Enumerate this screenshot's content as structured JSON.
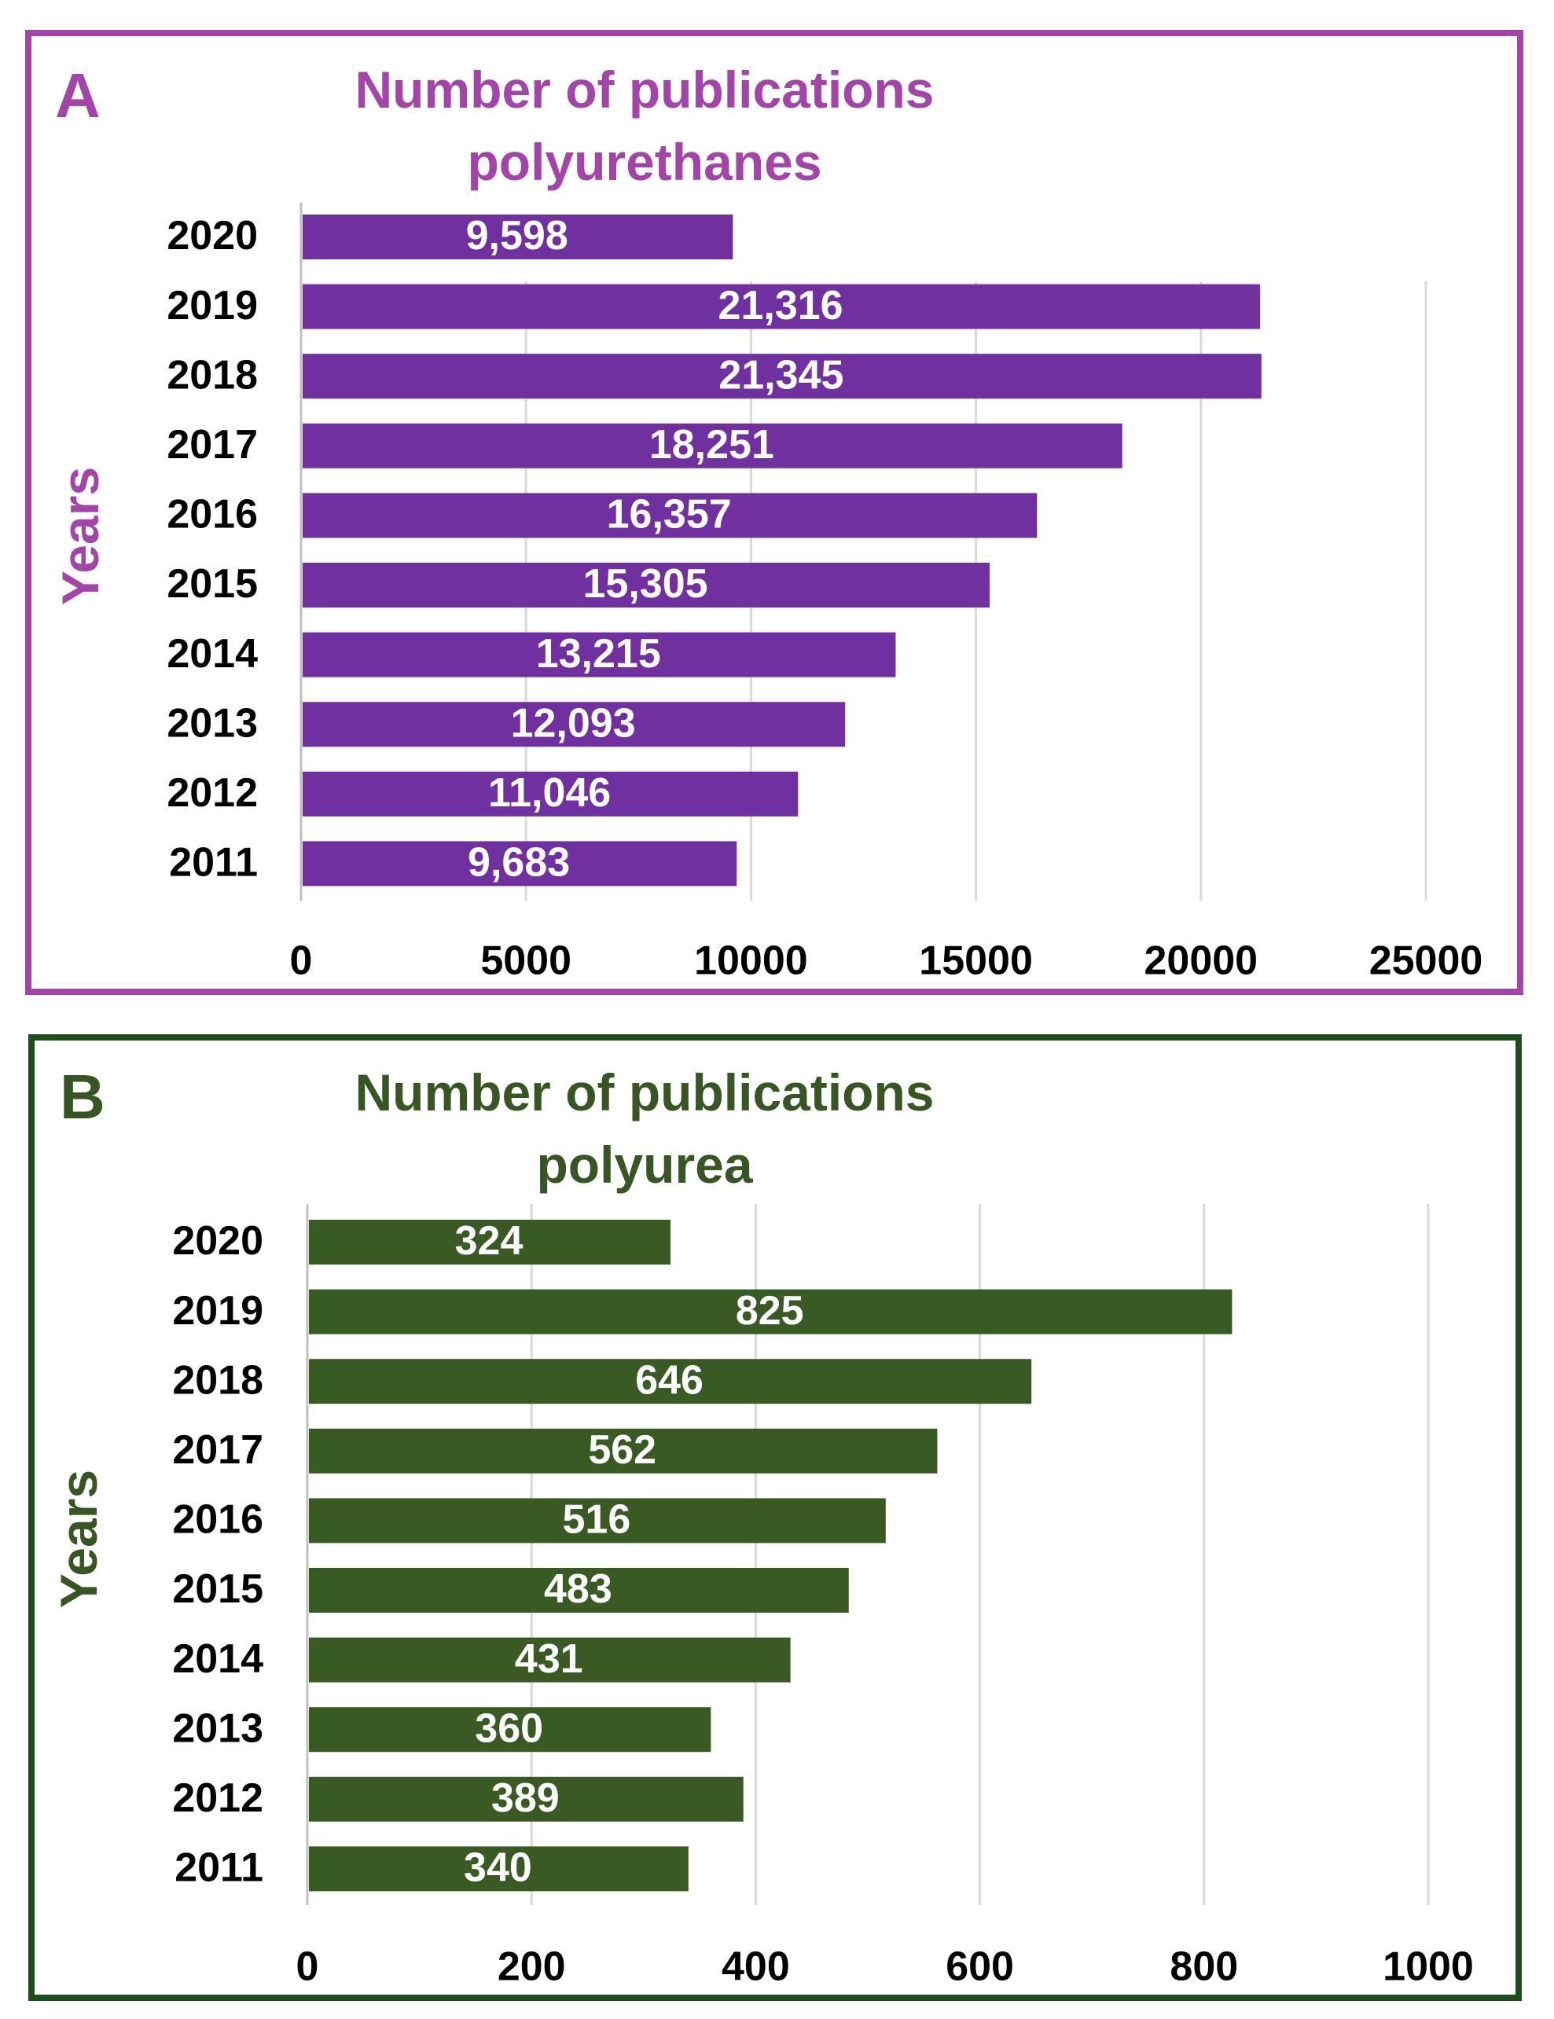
{
  "panels": [
    {
      "letter": "A",
      "title_line1": "Number of publications",
      "title_line2": "polyurethanes",
      "ylabel": "Years",
      "colors": {
        "accent": "#a244a8",
        "bar": "#7030a0"
      }
    },
    {
      "letter": "B",
      "title_line1": "Number of publications",
      "title_line2": "polyurea",
      "ylabel": "Years",
      "colors": {
        "accent": "#375623",
        "bar": "#3a5a24"
      }
    }
  ],
  "chart_data": [
    {
      "type": "bar",
      "orientation": "horizontal",
      "title": "Number of publications polyurethanes",
      "ylabel": "Years",
      "xlabel": "",
      "categories": [
        "2020",
        "2019",
        "2018",
        "2017",
        "2016",
        "2015",
        "2014",
        "2013",
        "2012",
        "2011"
      ],
      "values": [
        9598,
        21316,
        21345,
        18251,
        16357,
        15305,
        13215,
        12093,
        11046,
        9683
      ],
      "data_labels": [
        "9,598",
        "21,316",
        "21,345",
        "18,251",
        "16,357",
        "15,305",
        "13,215",
        "12,093",
        "11,046",
        "9,683"
      ],
      "xticks": [
        0,
        5000,
        10000,
        15000,
        20000,
        25000
      ],
      "xtick_labels": [
        "0",
        "5000",
        "10000",
        "15000",
        "20000",
        "25000"
      ],
      "xlim": [
        0,
        25000
      ],
      "grid": true
    },
    {
      "type": "bar",
      "orientation": "horizontal",
      "title": "Number of publications polyurea",
      "ylabel": "Years",
      "xlabel": "",
      "categories": [
        "2020",
        "2019",
        "2018",
        "2017",
        "2016",
        "2015",
        "2014",
        "2013",
        "2012",
        "2011"
      ],
      "values": [
        324,
        825,
        646,
        562,
        516,
        483,
        431,
        360,
        389,
        340
      ],
      "data_labels": [
        "324",
        "825",
        "646",
        "562",
        "516",
        "483",
        "431",
        "360",
        "389",
        "340"
      ],
      "xticks": [
        0,
        200,
        400,
        600,
        800,
        1000
      ],
      "xtick_labels": [
        "0",
        "200",
        "400",
        "600",
        "800",
        "1000"
      ],
      "xlim": [
        0,
        1000
      ],
      "grid": true
    }
  ]
}
